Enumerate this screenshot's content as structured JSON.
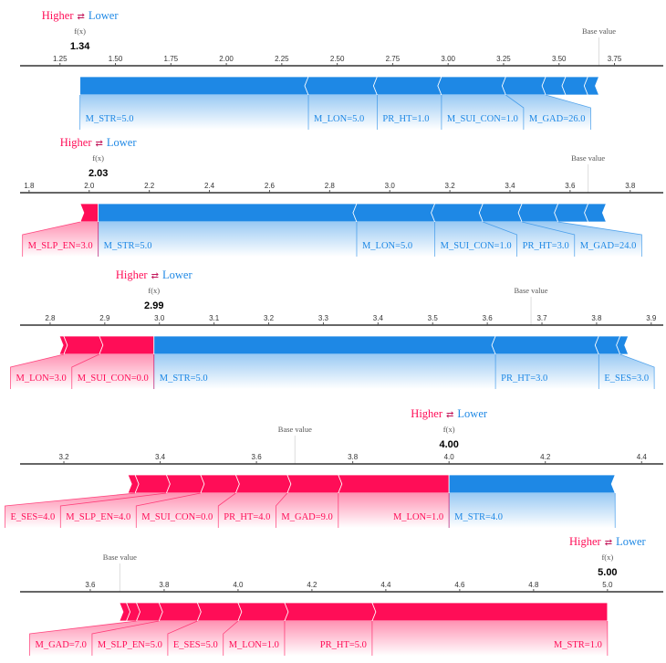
{
  "colors": {
    "positive": "#ff0d57",
    "negative": "#1e88e5",
    "axis": "#333333"
  },
  "legend": {
    "higher": "Higher",
    "lower": "Lower",
    "icon": "swap-arrows-icon"
  },
  "chart_data": [
    {
      "type": "force",
      "xlim": [
        1.07,
        3.97
      ],
      "ticks": [
        "1.25",
        "1.50",
        "1.75",
        "2.00",
        "2.25",
        "2.50",
        "2.75",
        "3.00",
        "3.25",
        "3.50",
        "3.75"
      ],
      "fx_title": "f(x)",
      "fx": 1.34,
      "fx_label": "1.34",
      "base_label": "Base value",
      "base_value": 3.68,
      "segments": [
        {
          "label": "M_STR=5.0",
          "start": 1.34,
          "end": 2.37,
          "effect": "negative"
        },
        {
          "label": "M_LON=5.0",
          "start": 2.37,
          "end": 2.68,
          "effect": "negative"
        },
        {
          "label": "PR_HT=1.0",
          "start": 2.68,
          "end": 2.97,
          "effect": "negative"
        },
        {
          "label": "M_SUI_CON=1.0",
          "start": 2.97,
          "end": 3.26,
          "effect": "negative"
        },
        {
          "label": "M_GAD=26.0",
          "start": 3.26,
          "end": 3.44,
          "effect": "negative"
        },
        {
          "label": "",
          "start": 3.44,
          "end": 3.53,
          "effect": "negative"
        },
        {
          "label": "",
          "start": 3.53,
          "end": 3.63,
          "effect": "negative"
        },
        {
          "label": "",
          "start": 3.63,
          "end": 3.68,
          "effect": "negative"
        }
      ]
    },
    {
      "type": "force",
      "xlim": [
        1.77,
        3.91
      ],
      "ticks": [
        "1.8",
        "2.0",
        "2.2",
        "2.4",
        "2.6",
        "2.8",
        "3.0",
        "3.2",
        "3.4",
        "3.6",
        "3.8"
      ],
      "fx_title": "f(x)",
      "fx": 2.03,
      "fx_label": "2.03",
      "base_label": "Base value",
      "base_value": 3.66,
      "segments": [
        {
          "label": "M_SLP_EN=3.0",
          "start": 1.97,
          "end": 2.03,
          "effect": "positive"
        },
        {
          "label": "M_STR=5.0",
          "start": 2.03,
          "end": 2.89,
          "effect": "negative"
        },
        {
          "label": "M_LON=5.0",
          "start": 2.89,
          "end": 3.15,
          "effect": "negative"
        },
        {
          "label": "M_SUI_CON=1.0",
          "start": 3.15,
          "end": 3.31,
          "effect": "negative"
        },
        {
          "label": "PR_HT=3.0",
          "start": 3.31,
          "end": 3.44,
          "effect": "negative"
        },
        {
          "label": "M_GAD=24.0",
          "start": 3.44,
          "end": 3.56,
          "effect": "negative"
        },
        {
          "label": "",
          "start": 3.56,
          "end": 3.66,
          "effect": "negative"
        },
        {
          "label": "",
          "start": 3.66,
          "end": 3.72,
          "effect": "negative"
        }
      ]
    },
    {
      "type": "force",
      "xlim": [
        2.745,
        3.922
      ],
      "ticks": [
        "2.8",
        "2.9",
        "3.0",
        "3.1",
        "3.2",
        "3.3",
        "3.4",
        "3.5",
        "3.6",
        "3.7",
        "3.8",
        "3.9"
      ],
      "fx_title": "f(x)",
      "fx": 2.99,
      "fx_label": "2.99",
      "base_label": "Base value",
      "base_value": 3.68,
      "segments": [
        {
          "label": "",
          "start": 2.817,
          "end": 2.825,
          "effect": "positive"
        },
        {
          "label": "M_LON=3.0",
          "start": 2.825,
          "end": 2.89,
          "effect": "positive"
        },
        {
          "label": "M_SUI_CON=0.0",
          "start": 2.89,
          "end": 2.99,
          "effect": "positive"
        },
        {
          "label": "M_STR=5.0",
          "start": 2.99,
          "end": 3.615,
          "effect": "negative"
        },
        {
          "label": "PR_HT=3.0",
          "start": 3.615,
          "end": 3.804,
          "effect": "negative"
        },
        {
          "label": "E_SES=3.0",
          "start": 3.804,
          "end": 3.843,
          "effect": "negative"
        },
        {
          "label": "",
          "start": 3.843,
          "end": 3.858,
          "effect": "negative"
        }
      ]
    },
    {
      "type": "force",
      "xlim": [
        3.109,
        4.445
      ],
      "ticks": [
        "3.2",
        "3.4",
        "3.6",
        "3.8",
        "4.0",
        "4.2",
        "4.4"
      ],
      "fx_title": "f(x)",
      "fx": 4.0,
      "fx_label": "4.00",
      "base_label": "Base value",
      "base_value": 3.68,
      "segments": [
        {
          "label": "",
          "start": 3.333,
          "end": 3.348,
          "effect": "positive"
        },
        {
          "label": "E_SES=4.0",
          "start": 3.348,
          "end": 3.413,
          "effect": "positive"
        },
        {
          "label": "M_SLP_EN=4.0",
          "start": 3.413,
          "end": 3.484,
          "effect": "positive"
        },
        {
          "label": "M_SUI_CON=0.0",
          "start": 3.484,
          "end": 3.557,
          "effect": "positive"
        },
        {
          "label": "PR_HT=4.0",
          "start": 3.557,
          "end": 3.664,
          "effect": "positive"
        },
        {
          "label": "M_GAD=9.0",
          "start": 3.664,
          "end": 3.77,
          "effect": "positive"
        },
        {
          "label": "M_LON=1.0",
          "start": 3.77,
          "end": 4.0,
          "effect": "positive"
        },
        {
          "label": "M_STR=4.0",
          "start": 4.0,
          "end": 4.345,
          "effect": "negative"
        }
      ]
    },
    {
      "type": "force",
      "xlim": [
        3.41,
        5.151
      ],
      "ticks": [
        "3.6",
        "3.8",
        "4.0",
        "4.2",
        "4.4",
        "4.6",
        "4.8",
        "5.0"
      ],
      "fx_title": "f(x)",
      "fx": 5.0,
      "fx_label": "5.00",
      "base_label": "Base value",
      "base_value": 3.68,
      "segments": [
        {
          "label": "",
          "start": 3.679,
          "end": 3.698,
          "effect": "positive"
        },
        {
          "label": "",
          "start": 3.698,
          "end": 3.725,
          "effect": "positive"
        },
        {
          "label": "M_GAD=7.0",
          "start": 3.725,
          "end": 3.786,
          "effect": "positive"
        },
        {
          "label": "M_SLP_EN=5.0",
          "start": 3.786,
          "end": 3.89,
          "effect": "positive"
        },
        {
          "label": "E_SES=5.0",
          "start": 3.89,
          "end": 4.0,
          "effect": "positive"
        },
        {
          "label": "M_LON=1.0",
          "start": 4.0,
          "end": 4.126,
          "effect": "positive"
        },
        {
          "label": "PR_HT=5.0",
          "start": 4.126,
          "end": 4.363,
          "effect": "positive"
        },
        {
          "label": "M_STR=1.0",
          "start": 4.363,
          "end": 5.0,
          "effect": "positive"
        }
      ]
    }
  ]
}
